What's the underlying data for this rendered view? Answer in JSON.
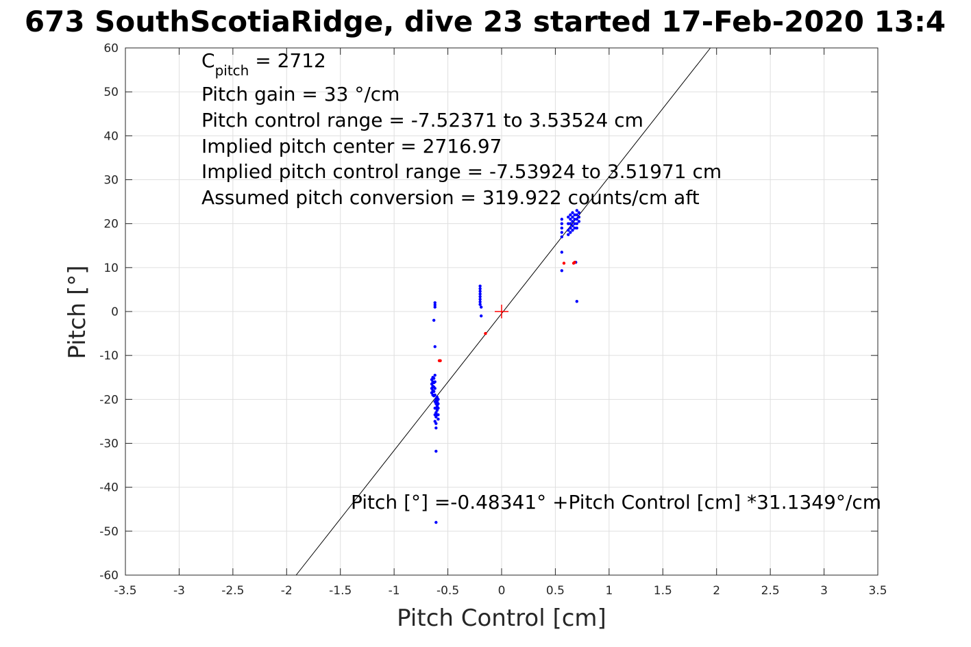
{
  "chart_data": {
    "type": "scatter",
    "title": "673 SouthScotiaRidge, dive 23 started 17-Feb-2020 13:4",
    "xlabel": "Pitch Control [cm]",
    "ylabel": "Pitch [°]",
    "xlim": [
      -3.5,
      3.5
    ],
    "ylim": [
      -60,
      60
    ],
    "xticks": [
      -3.5,
      -3,
      -2.5,
      -2,
      -1.5,
      -1,
      -0.5,
      0,
      0.5,
      1,
      1.5,
      2,
      2.5,
      3,
      3.5
    ],
    "yticks": [
      -60,
      -50,
      -40,
      -30,
      -20,
      -10,
      0,
      10,
      20,
      30,
      40,
      50,
      60
    ],
    "xtick_labels": [
      "-3.5",
      "-3",
      "-2.5",
      "-2",
      "-1.5",
      "-1",
      "-0.5",
      "0",
      "0.5",
      "1",
      "1.5",
      "2",
      "2.5",
      "3",
      "3.5"
    ],
    "ytick_labels": [
      "-60",
      "-50",
      "-40",
      "-30",
      "-20",
      "-10",
      "0",
      "10",
      "20",
      "30",
      "40",
      "50",
      "60"
    ],
    "grid": true,
    "annotations": {
      "cpitch_base": "C",
      "cpitch_sub": "pitch",
      "cpitch_value": " = 2712",
      "lines": [
        "Pitch gain = 33 °/cm",
        "Pitch control range = -7.52371 to 3.53524 cm",
        "Implied pitch center = 2716.97",
        "Implied pitch control range = -7.53924 to 3.51971 cm",
        "Assumed pitch conversion = 319.922 counts/cm aft"
      ],
      "fit_equation": "Pitch [°] =-0.48341° +Pitch Control [cm] *31.1349°/cm"
    },
    "fit_line": {
      "intercept": -0.48341,
      "slope": 31.1349,
      "color": "#000000"
    },
    "center_marker": {
      "x": 0,
      "y": 0,
      "color": "#ff0000"
    },
    "series": [
      {
        "color": "#0000ff",
        "points": [
          [
            -0.62,
            2.0
          ],
          [
            -0.62,
            1.5
          ],
          [
            -0.62,
            1.0
          ],
          [
            -0.63,
            -2.0
          ],
          [
            -0.62,
            -8.0
          ],
          [
            -0.65,
            -15.5
          ],
          [
            -0.65,
            -16.5
          ],
          [
            -0.65,
            -17.5
          ],
          [
            -0.65,
            -18.5
          ],
          [
            -0.64,
            -15.0
          ],
          [
            -0.64,
            -16.0
          ],
          [
            -0.64,
            -17.0
          ],
          [
            -0.64,
            -18.0
          ],
          [
            -0.64,
            -19.0
          ],
          [
            -0.63,
            -15.2
          ],
          [
            -0.63,
            -16.2
          ],
          [
            -0.63,
            -17.2
          ],
          [
            -0.63,
            -18.2
          ],
          [
            -0.63,
            -19.2
          ],
          [
            -0.62,
            -14.5
          ],
          [
            -0.62,
            -16.0
          ],
          [
            -0.62,
            -17.5
          ],
          [
            -0.62,
            -19.0
          ],
          [
            -0.61,
            -20.0
          ],
          [
            -0.61,
            -21.0
          ],
          [
            -0.61,
            -22.0
          ],
          [
            -0.61,
            -23.0
          ],
          [
            -0.61,
            -24.0
          ],
          [
            -0.6,
            -19.5
          ],
          [
            -0.6,
            -20.5
          ],
          [
            -0.6,
            -21.5
          ],
          [
            -0.6,
            -22.5
          ],
          [
            -0.6,
            -23.5
          ],
          [
            -0.59,
            -20.0
          ],
          [
            -0.59,
            -21.0
          ],
          [
            -0.59,
            -22.0
          ],
          [
            -0.59,
            -23.5
          ],
          [
            -0.59,
            -24.5
          ],
          [
            -0.62,
            -20.5
          ],
          [
            -0.62,
            -22.0
          ],
          [
            -0.62,
            -23.5
          ],
          [
            -0.62,
            -25.0
          ],
          [
            -0.61,
            -25.5
          ],
          [
            -0.61,
            -26.5
          ],
          [
            -0.61,
            -31.8
          ],
          [
            -0.61,
            -48.0
          ],
          [
            -0.2,
            5.8
          ],
          [
            -0.2,
            5.2
          ],
          [
            -0.2,
            4.6
          ],
          [
            -0.2,
            4.0
          ],
          [
            -0.2,
            3.4
          ],
          [
            -0.2,
            2.8
          ],
          [
            -0.2,
            2.2
          ],
          [
            -0.2,
            1.6
          ],
          [
            -0.19,
            1.0
          ],
          [
            -0.19,
            -1.0
          ],
          [
            0.56,
            21.0
          ],
          [
            0.56,
            20.0
          ],
          [
            0.56,
            19.0
          ],
          [
            0.56,
            18.0
          ],
          [
            0.56,
            17.0
          ],
          [
            0.56,
            13.5
          ],
          [
            0.56,
            9.3
          ],
          [
            0.62,
            21.5
          ],
          [
            0.62,
            20.0
          ],
          [
            0.62,
            18.5
          ],
          [
            0.62,
            17.5
          ],
          [
            0.64,
            22.0
          ],
          [
            0.64,
            21.0
          ],
          [
            0.64,
            20.0
          ],
          [
            0.64,
            19.0
          ],
          [
            0.64,
            18.0
          ],
          [
            0.66,
            22.5
          ],
          [
            0.66,
            21.5
          ],
          [
            0.66,
            20.5
          ],
          [
            0.66,
            19.5
          ],
          [
            0.66,
            18.5
          ],
          [
            0.68,
            22.0
          ],
          [
            0.68,
            21.0
          ],
          [
            0.68,
            20.0
          ],
          [
            0.68,
            19.0
          ],
          [
            0.7,
            23.0
          ],
          [
            0.7,
            22.0
          ],
          [
            0.7,
            21.0
          ],
          [
            0.7,
            20.0
          ],
          [
            0.7,
            19.0
          ],
          [
            0.72,
            22.5
          ],
          [
            0.72,
            21.5
          ],
          [
            0.72,
            20.5
          ],
          [
            0.69,
            11.2
          ],
          [
            0.7,
            2.3
          ]
        ]
      },
      {
        "color": "#ff0000",
        "points": [
          [
            -0.58,
            -11.2
          ],
          [
            -0.57,
            -11.2
          ],
          [
            -0.15,
            -5.0
          ],
          [
            0.58,
            11.0
          ],
          [
            0.67,
            11.0
          ],
          [
            0.68,
            11.2
          ]
        ]
      }
    ]
  }
}
